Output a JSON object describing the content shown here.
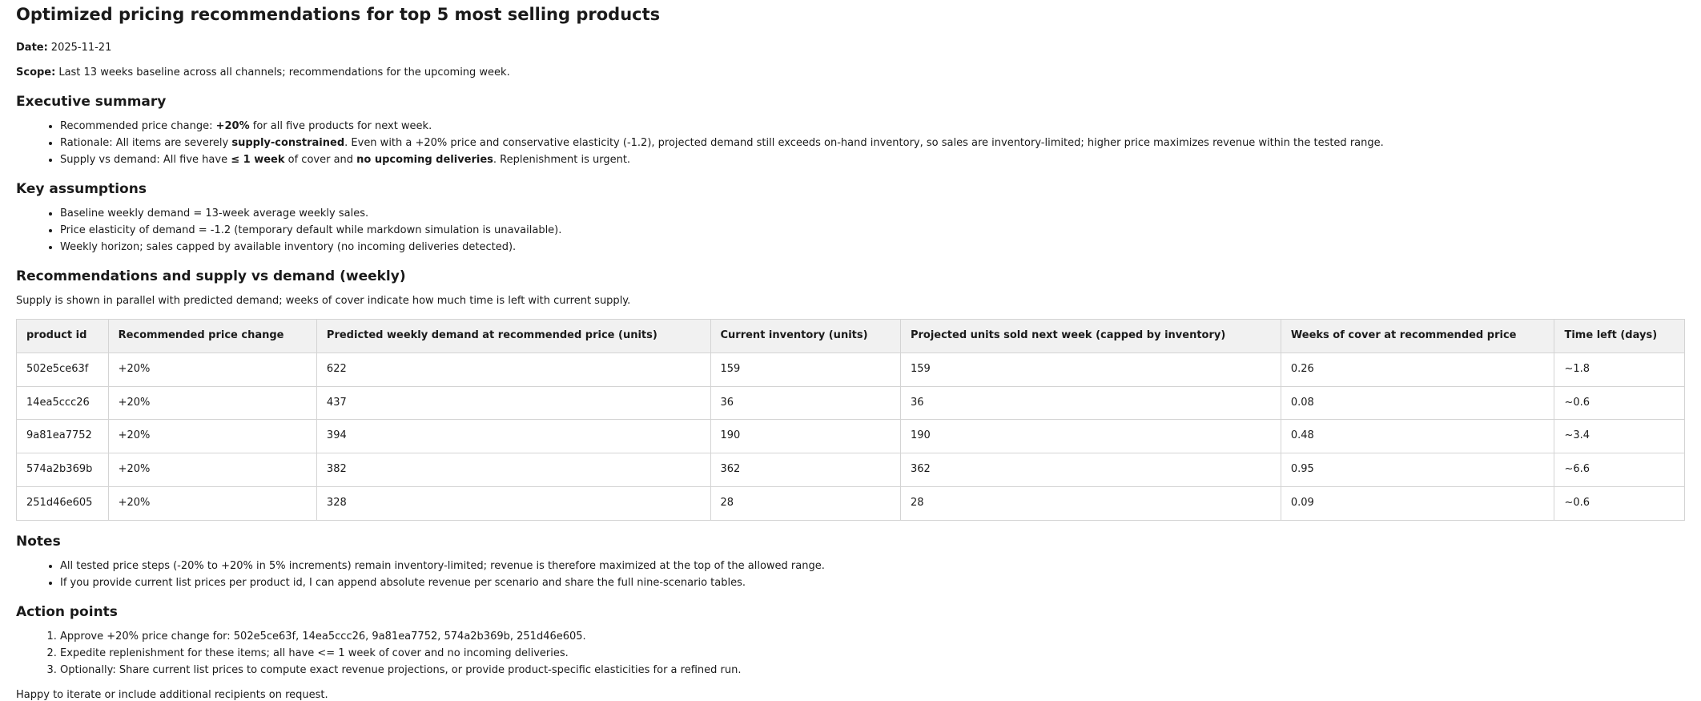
{
  "page": {
    "title": "Optimized pricing recommendations for top 5 most selling products",
    "date_label": "Date:",
    "date_value": "2025-11-21",
    "scope_label": "Scope:",
    "scope_value": "Last 13 weeks baseline across all channels; recommendations for the upcoming week."
  },
  "executive_summary": {
    "heading": "Executive summary",
    "bullets": [
      [
        {
          "t": "Recommended price change: ",
          "b": false
        },
        {
          "t": "+20%",
          "b": true
        },
        {
          "t": " for all five products for next week.",
          "b": false
        }
      ],
      [
        {
          "t": "Rationale: All items are severely ",
          "b": false
        },
        {
          "t": "supply-constrained",
          "b": true
        },
        {
          "t": ". Even with a +20% price and conservative elasticity (-1.2), projected demand still exceeds on-hand inventory, so sales are inventory-limited; higher price maximizes revenue within the tested range.",
          "b": false
        }
      ],
      [
        {
          "t": "Supply vs demand: All five have ",
          "b": false
        },
        {
          "t": "≤ 1 week",
          "b": true
        },
        {
          "t": " of cover and ",
          "b": false
        },
        {
          "t": "no upcoming deliveries",
          "b": true
        },
        {
          "t": ". Replenishment is urgent.",
          "b": false
        }
      ]
    ]
  },
  "key_assumptions": {
    "heading": "Key assumptions",
    "bullets": [
      "Baseline weekly demand = 13-week average weekly sales.",
      "Price elasticity of demand = -1.2 (temporary default while markdown simulation is unavailable).",
      "Weekly horizon; sales capped by available inventory (no incoming deliveries detected)."
    ]
  },
  "recommendations": {
    "heading": "Recommendations and supply vs demand (weekly)",
    "intro": "Supply is shown in parallel with predicted demand; weeks of cover indicate how much time is left with current supply.",
    "table": {
      "headers": [
        "product id",
        "Recommended price change",
        "Predicted weekly demand at recommended price (units)",
        "Current inventory (units)",
        "Projected units sold next week (capped by inventory)",
        "Weeks of cover at recommended price",
        "Time left (days)"
      ],
      "rows": [
        [
          "502e5ce63f",
          "+20%",
          "622",
          "159",
          "159",
          "0.26",
          "~1.8"
        ],
        [
          "14ea5ccc26",
          "+20%",
          "437",
          "36",
          "36",
          "0.08",
          "~0.6"
        ],
        [
          "9a81ea7752",
          "+20%",
          "394",
          "190",
          "190",
          "0.48",
          "~3.4"
        ],
        [
          "574a2b369b",
          "+20%",
          "382",
          "362",
          "362",
          "0.95",
          "~6.6"
        ],
        [
          "251d46e605",
          "+20%",
          "328",
          "28",
          "28",
          "0.09",
          "~0.6"
        ]
      ]
    }
  },
  "notes": {
    "heading": "Notes",
    "bullets": [
      "All tested price steps (-20% to +20% in 5% increments) remain inventory-limited; revenue is therefore maximized at the top of the allowed range.",
      "If you provide current list prices per product id, I can append absolute revenue per scenario and share the full nine-scenario tables."
    ]
  },
  "action_points": {
    "heading": "Action points",
    "items": [
      "Approve +20% price change for: 502e5ce63f, 14ea5ccc26, 9a81ea7752, 574a2b369b, 251d46e605.",
      "Expedite replenishment for these items; all have <= 1 week of cover and no incoming deliveries.",
      "Optionally: Share current list prices to compute exact revenue projections, or provide product-specific elasticities for a refined run."
    ]
  },
  "closing": "Happy to iterate or include additional recipients on request.",
  "colors": {
    "text": "#1a1a1a",
    "table_border": "#d4d4d4",
    "table_header_bg": "#f1f1f1"
  }
}
